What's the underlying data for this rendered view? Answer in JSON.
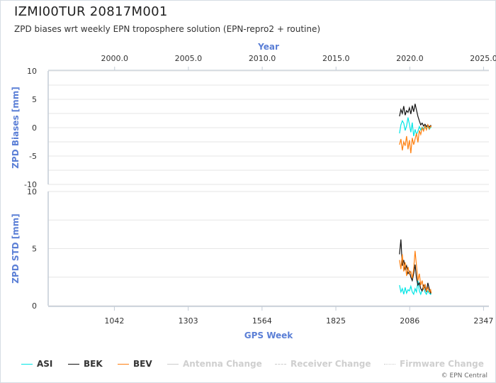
{
  "header": {
    "title": "IZMI00TUR 20817M001",
    "subtitle": "ZPD biases wrt weekly EPN troposphere solution (EPN-repro2 + routine)"
  },
  "chart_data": {
    "type": "line",
    "top_axis": {
      "label": "Year",
      "ticks": [
        2000.0,
        2005.0,
        2010.0,
        2015.0,
        2020.0,
        2025.0
      ],
      "tick_labels": [
        "2000.0",
        "2005.0",
        "2010.0",
        "2015.0",
        "2020.0",
        "2025.0"
      ]
    },
    "x_axis": {
      "label": "GPS Week",
      "range": [
        808,
        2366
      ],
      "ticks": [
        1042,
        1303,
        1564,
        1825,
        2086,
        2347
      ],
      "tick_labels": [
        "1042",
        "1303",
        "1564",
        "1825",
        "2086",
        "2347"
      ]
    },
    "panels": [
      {
        "ylabel": "ZPD Biases [mm]",
        "ylim": [
          -10,
          10
        ],
        "yticks": [
          -10,
          -5,
          0,
          5,
          10
        ],
        "ytick_labels": [
          "-10",
          "-5",
          "0",
          "5",
          "10"
        ],
        "series": [
          {
            "name": "ASI",
            "color": "#00e5e5",
            "x": [
              2050,
              2055,
              2060,
              2065,
              2070,
              2075,
              2080,
              2085,
              2090,
              2095,
              2100,
              2105,
              2110,
              2115,
              2120,
              2125,
              2130,
              2135,
              2140,
              2145,
              2150,
              2155,
              2160,
              2162
            ],
            "y": [
              -1.0,
              0.5,
              1.2,
              0.8,
              -0.5,
              0.3,
              1.8,
              0.6,
              -0.8,
              0.9,
              -1.5,
              -0.3,
              -1.2,
              -0.6,
              0.2,
              -0.4,
              0.1,
              -0.2,
              0.3,
              -0.1,
              0.2,
              -0.3,
              0.1,
              0.0
            ]
          },
          {
            "name": "BEK",
            "color": "#111111",
            "x": [
              2050,
              2055,
              2060,
              2065,
              2070,
              2075,
              2080,
              2085,
              2090,
              2095,
              2100,
              2105,
              2110,
              2115,
              2120,
              2125,
              2130,
              2135,
              2140,
              2145,
              2150,
              2155,
              2160,
              2162
            ],
            "y": [
              2.0,
              3.2,
              2.5,
              3.8,
              2.2,
              3.0,
              2.7,
              3.5,
              2.4,
              3.9,
              2.8,
              4.2,
              3.1,
              2.0,
              1.2,
              0.5,
              0.8,
              0.3,
              0.6,
              0.2,
              0.5,
              0.1,
              0.4,
              0.3
            ]
          },
          {
            "name": "BEV",
            "color": "#ff7f0e",
            "x": [
              2050,
              2055,
              2060,
              2065,
              2070,
              2075,
              2080,
              2085,
              2090,
              2095,
              2100,
              2105,
              2110,
              2115,
              2120,
              2125,
              2130,
              2135,
              2140,
              2145,
              2150,
              2155,
              2160,
              2162
            ],
            "y": [
              -3.0,
              -2.0,
              -4.0,
              -2.5,
              -3.2,
              -1.5,
              -3.8,
              -2.2,
              -4.5,
              -1.8,
              -3.0,
              -2.0,
              -1.0,
              -2.6,
              -0.5,
              -1.2,
              0.0,
              -0.6,
              0.3,
              -0.4,
              0.5,
              -0.2,
              0.3,
              0.1
            ]
          }
        ]
      },
      {
        "ylabel": "ZPD STD [mm]",
        "ylim": [
          0,
          10
        ],
        "yticks": [
          0,
          5,
          10
        ],
        "ytick_labels": [
          "0",
          "5",
          "10"
        ],
        "series": [
          {
            "name": "ASI",
            "color": "#00e5e5",
            "x": [
              2050,
              2055,
              2060,
              2065,
              2070,
              2075,
              2080,
              2085,
              2090,
              2095,
              2100,
              2105,
              2110,
              2115,
              2120,
              2125,
              2130,
              2135,
              2140,
              2145,
              2150,
              2155,
              2160,
              2162
            ],
            "y": [
              1.8,
              1.2,
              1.5,
              1.0,
              1.6,
              1.1,
              1.4,
              1.3,
              1.7,
              1.2,
              1.0,
              1.5,
              1.2,
              2.2,
              1.3,
              1.0,
              1.4,
              1.6,
              1.2,
              1.0,
              1.3,
              1.1,
              1.0,
              1.2
            ]
          },
          {
            "name": "BEK",
            "color": "#111111",
            "x": [
              2050,
              2055,
              2060,
              2065,
              2070,
              2075,
              2080,
              2085,
              2090,
              2095,
              2100,
              2105,
              2110,
              2115,
              2120,
              2125,
              2130,
              2135,
              2140,
              2145,
              2150,
              2155,
              2160,
              2162
            ],
            "y": [
              4.5,
              5.8,
              3.5,
              4.0,
              3.2,
              3.5,
              2.8,
              3.0,
              2.5,
              2.2,
              2.8,
              3.6,
              2.4,
              1.8,
              2.0,
              1.5,
              1.3,
              1.8,
              1.6,
              1.2,
              2.0,
              1.5,
              1.1,
              1.2
            ]
          },
          {
            "name": "BEV",
            "color": "#ff7f0e",
            "x": [
              2050,
              2055,
              2060,
              2065,
              2070,
              2075,
              2080,
              2085,
              2090,
              2095,
              2100,
              2105,
              2110,
              2115,
              2120,
              2125,
              2130,
              2135,
              2140,
              2145,
              2150,
              2155,
              2160,
              2162
            ],
            "y": [
              4.0,
              3.2,
              4.5,
              3.0,
              3.8,
              2.6,
              3.4,
              2.8,
              3.0,
              2.4,
              3.2,
              4.8,
              3.5,
              2.2,
              2.8,
              1.8,
              2.2,
              1.4,
              1.9,
              1.3,
              1.6,
              1.2,
              1.4,
              1.1
            ]
          }
        ]
      }
    ],
    "legend": [
      {
        "name": "ASI",
        "color": "#00e5e5",
        "style": "solid",
        "active": true
      },
      {
        "name": "BEK",
        "color": "#111111",
        "style": "solid",
        "active": true
      },
      {
        "name": "BEV",
        "color": "#ff7f0e",
        "style": "solid",
        "active": true
      },
      {
        "name": "Antenna Change",
        "color": "#cccccc",
        "style": "solid",
        "active": false
      },
      {
        "name": "Receiver Change",
        "color": "#cccccc",
        "style": "dashed",
        "active": false
      },
      {
        "name": "Firmware Change",
        "color": "#cccccc",
        "style": "dotted",
        "active": false
      }
    ],
    "legend_position": "bottom",
    "grid": true
  },
  "footer": {
    "credit": "© EPN Central"
  }
}
